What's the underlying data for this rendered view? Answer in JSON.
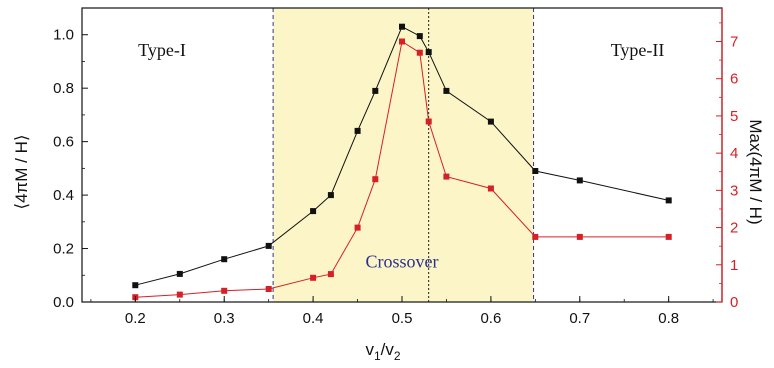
{
  "chart_data": {
    "type": "line",
    "xlabel": "v1/v2",
    "xlabel_parts": {
      "v": "v",
      "sub1": "1",
      "slash": "/",
      "sub2": "2"
    },
    "ylabel_left": "⟨4πM / H⟩",
    "ylabel_right": "Max(4πM / H)",
    "xlim": [
      0.14,
      0.86
    ],
    "ylim_left": [
      0,
      1.1
    ],
    "ylim_right": [
      0,
      7.9
    ],
    "x_ticks": [
      "0.2",
      "0.3",
      "0.4",
      "0.5",
      "0.6",
      "0.7",
      "0.8"
    ],
    "y_left_ticks": [
      "0.0",
      "0.2",
      "0.4",
      "0.6",
      "0.8",
      "1.0"
    ],
    "y_right_ticks": [
      "0",
      "1",
      "2",
      "3",
      "4",
      "5",
      "6",
      "7"
    ],
    "shaded_region": {
      "x_start": 0.355,
      "x_end": 0.648,
      "color": "#fbf5c8"
    },
    "vlines": [
      {
        "x": 0.355,
        "color": "#34348f",
        "style": "dashed"
      },
      {
        "x": 0.53,
        "color": "#222222",
        "style": "dotted"
      },
      {
        "x": 0.648,
        "color": "#34348f",
        "style": "dashed"
      }
    ],
    "annotations": [
      {
        "text": "Type-I",
        "x": 0.23,
        "y": 0.92,
        "color": "#111111"
      },
      {
        "text": "Type-II",
        "x": 0.765,
        "y": 0.92,
        "color": "#111111"
      },
      {
        "text": "Crossover",
        "x": 0.5,
        "y": 0.13,
        "color": "#2d2f8f"
      }
    ],
    "series": [
      {
        "axis": "left",
        "color": "#111111",
        "x": [
          0.2,
          0.25,
          0.3,
          0.35,
          0.4,
          0.42,
          0.45,
          0.47,
          0.5,
          0.52,
          0.53,
          0.55,
          0.6,
          0.65,
          0.7,
          0.8
        ],
        "y": [
          0.063,
          0.105,
          0.16,
          0.21,
          0.34,
          0.4,
          0.64,
          0.79,
          1.03,
          0.995,
          0.935,
          0.79,
          0.675,
          0.49,
          0.455,
          0.38
        ]
      },
      {
        "axis": "right",
        "color": "#d62027",
        "x": [
          0.2,
          0.25,
          0.3,
          0.35,
          0.4,
          0.42,
          0.45,
          0.47,
          0.5,
          0.52,
          0.53,
          0.55,
          0.6,
          0.65,
          0.7,
          0.8
        ],
        "y": [
          0.13,
          0.2,
          0.3,
          0.35,
          0.65,
          0.75,
          2.0,
          3.3,
          7.0,
          6.7,
          4.85,
          3.37,
          3.05,
          1.75,
          1.75,
          1.75
        ]
      }
    ],
    "colors": {
      "left_axis": "#111111",
      "right_axis": "#d62027"
    }
  }
}
